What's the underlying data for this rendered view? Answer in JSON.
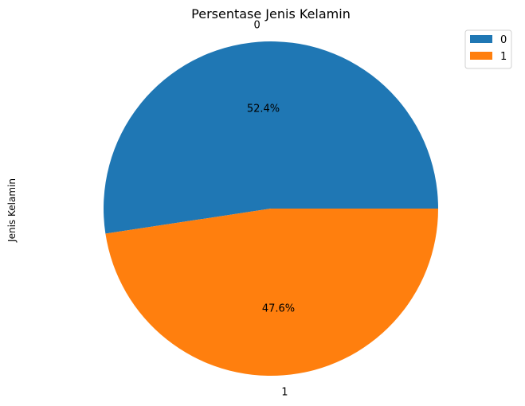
{
  "chart_data": {
    "type": "pie",
    "title": "Persentase Jenis Kelamin",
    "ylabel": "Jenis Kelamin",
    "categories": [
      "0",
      "1"
    ],
    "values": [
      52.4,
      47.6
    ],
    "percent_labels": [
      "52.4%",
      "47.6%"
    ],
    "colors": [
      "#1f77b4",
      "#ff7f0e"
    ],
    "start_angle_deg": 0,
    "direction": "counterclockwise",
    "legend": {
      "placement": "top-right",
      "entries": [
        "0",
        "1"
      ]
    }
  }
}
